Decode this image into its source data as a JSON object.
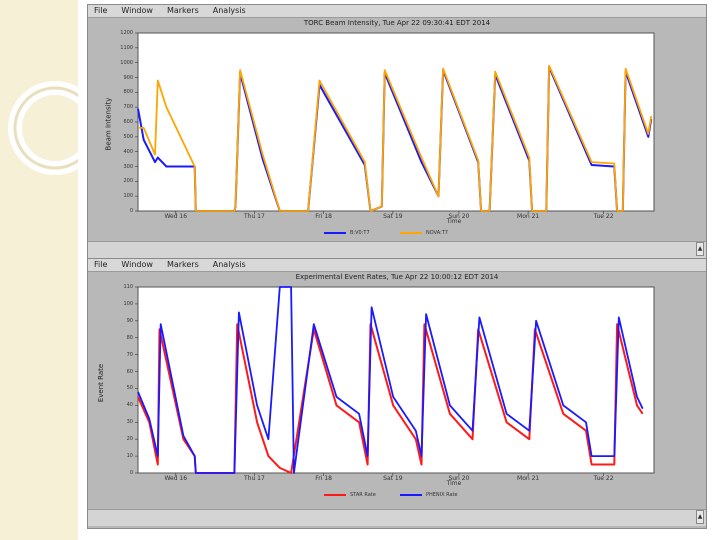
{
  "colors": {
    "blue": "#1a1aff",
    "orange": "#ffa500",
    "red": "#ff1a1a",
    "window_bg": "#b8b8b8",
    "plot_bg": "#ffffff",
    "deco": "#f5f0d6"
  },
  "window1": {
    "menu": [
      "File",
      "Window",
      "Markers",
      "Analysis"
    ],
    "title": "TORC Beam Intensity, Tue Apr 22 09:30:41 EDT 2014",
    "ylabel": "Beam Intensity",
    "xlabel": "Time",
    "legend": [
      "B:V0:T7",
      "NOVA:T7"
    ],
    "chart_data": {
      "type": "line",
      "title": "TORC Beam Intensity, Tue Apr 22 09:30:41 EDT 2014",
      "xlabel": "Time",
      "ylabel": "Beam Intensity",
      "categories": [
        "Wed 16",
        "Thu 17",
        "Fri 18",
        "Sat 19",
        "Sun 20",
        "Mon 21",
        "Tue 22"
      ],
      "yticks": [
        "0",
        "100",
        "200",
        "300",
        "400",
        "500",
        "600",
        "700",
        "800",
        "900",
        "1000",
        "1100",
        "1200"
      ],
      "ylim": [
        0,
        1200
      ],
      "series": [
        {
          "name": "B:V0:T7",
          "color": "#1a1aff",
          "values": [
            [
              0.0,
              690
            ],
            [
              0.1,
              480
            ],
            [
              0.3,
              330
            ],
            [
              0.35,
              360
            ],
            [
              0.5,
              300
            ],
            [
              1.0,
              300
            ],
            [
              1.02,
              0
            ],
            [
              1.7,
              0
            ],
            [
              1.72,
              30
            ],
            [
              1.8,
              930
            ],
            [
              2.2,
              350
            ],
            [
              2.5,
              0
            ],
            [
              3.0,
              0
            ],
            [
              3.2,
              850
            ],
            [
              4.0,
              310
            ],
            [
              4.1,
              0
            ],
            [
              4.3,
              30
            ],
            [
              4.35,
              930
            ],
            [
              5.0,
              330
            ],
            [
              5.3,
              100
            ],
            [
              5.38,
              950
            ],
            [
              6.0,
              330
            ],
            [
              6.05,
              0
            ],
            [
              6.2,
              0
            ],
            [
              6.3,
              920
            ],
            [
              6.9,
              340
            ],
            [
              6.95,
              0
            ],
            [
              7.2,
              0
            ],
            [
              7.25,
              970
            ],
            [
              8.0,
              310
            ],
            [
              8.4,
              300
            ],
            [
              8.45,
              0
            ],
            [
              8.55,
              0
            ],
            [
              8.6,
              940
            ],
            [
              9.0,
              500
            ],
            [
              9.05,
              620
            ]
          ]
        },
        {
          "name": "NOVA:T7",
          "color": "#ffa500",
          "values": [
            [
              0.0,
              560
            ],
            [
              0.1,
              560
            ],
            [
              0.3,
              380
            ],
            [
              0.35,
              880
            ],
            [
              0.5,
              700
            ],
            [
              1.0,
              300
            ],
            [
              1.02,
              0
            ],
            [
              1.7,
              0
            ],
            [
              1.72,
              30
            ],
            [
              1.8,
              950
            ],
            [
              2.2,
              380
            ],
            [
              2.5,
              0
            ],
            [
              3.0,
              0
            ],
            [
              3.2,
              880
            ],
            [
              4.0,
              330
            ],
            [
              4.1,
              0
            ],
            [
              4.3,
              30
            ],
            [
              4.35,
              950
            ],
            [
              5.0,
              360
            ],
            [
              5.3,
              100
            ],
            [
              5.38,
              960
            ],
            [
              6.0,
              340
            ],
            [
              6.05,
              0
            ],
            [
              6.2,
              0
            ],
            [
              6.3,
              940
            ],
            [
              6.9,
              360
            ],
            [
              6.95,
              0
            ],
            [
              7.2,
              0
            ],
            [
              7.25,
              980
            ],
            [
              8.0,
              330
            ],
            [
              8.4,
              320
            ],
            [
              8.45,
              0
            ],
            [
              8.55,
              0
            ],
            [
              8.6,
              960
            ],
            [
              9.0,
              520
            ],
            [
              9.05,
              640
            ]
          ]
        }
      ]
    }
  },
  "window2": {
    "menu": [
      "File",
      "Window",
      "Markers",
      "Analysis"
    ],
    "title": "Experimental Event Rates, Tue Apr 22 10:00:12 EDT 2014",
    "ylabel": "Event Rate",
    "xlabel": "Time",
    "legend": [
      "STAR Rate",
      "PHENIX Rate"
    ],
    "chart_data": {
      "type": "line",
      "title": "Experimental Event Rates, Tue Apr 22 10:00:12 EDT 2014",
      "xlabel": "Time",
      "ylabel": "Event Rate",
      "categories": [
        "Wed 16",
        "Thu 17",
        "Fri 18",
        "Sat 19",
        "Sun 20",
        "Mon 21",
        "Tue 22"
      ],
      "yticks": [
        "0",
        "10",
        "20",
        "30",
        "40",
        "50",
        "60",
        "70",
        "80",
        "90",
        "100",
        "110"
      ],
      "ylim": [
        0,
        110
      ],
      "series": [
        {
          "name": "STAR Rate",
          "color": "#ff1a1a",
          "values": [
            [
              0.0,
              45
            ],
            [
              0.2,
              30
            ],
            [
              0.35,
              5
            ],
            [
              0.38,
              85
            ],
            [
              0.8,
              20
            ],
            [
              1.0,
              10
            ],
            [
              1.02,
              0
            ],
            [
              1.7,
              0
            ],
            [
              1.75,
              88
            ],
            [
              2.1,
              30
            ],
            [
              2.3,
              10
            ],
            [
              2.5,
              3
            ],
            [
              2.7,
              0
            ],
            [
              3.1,
              85
            ],
            [
              3.5,
              40
            ],
            [
              3.9,
              30
            ],
            [
              4.05,
              5
            ],
            [
              4.1,
              88
            ],
            [
              4.5,
              40
            ],
            [
              4.9,
              20
            ],
            [
              5.0,
              5
            ],
            [
              5.05,
              88
            ],
            [
              5.5,
              35
            ],
            [
              5.9,
              20
            ],
            [
              6.0,
              85
            ],
            [
              6.5,
              30
            ],
            [
              6.9,
              20
            ],
            [
              7.0,
              85
            ],
            [
              7.5,
              35
            ],
            [
              7.9,
              25
            ],
            [
              8.0,
              5
            ],
            [
              8.4,
              5
            ],
            [
              8.45,
              88
            ],
            [
              8.8,
              40
            ],
            [
              8.9,
              35
            ]
          ]
        },
        {
          "name": "PHENIX Rate",
          "color": "#1a1aff",
          "values": [
            [
              0.0,
              48
            ],
            [
              0.2,
              32
            ],
            [
              0.35,
              10
            ],
            [
              0.4,
              88
            ],
            [
              0.8,
              22
            ],
            [
              1.0,
              10
            ],
            [
              1.02,
              0
            ],
            [
              1.7,
              0
            ],
            [
              1.78,
              95
            ],
            [
              2.1,
              40
            ],
            [
              2.3,
              20
            ],
            [
              2.5,
              110
            ],
            [
              2.7,
              110
            ],
            [
              2.75,
              0
            ],
            [
              3.1,
              88
            ],
            [
              3.5,
              45
            ],
            [
              3.9,
              35
            ],
            [
              4.05,
              10
            ],
            [
              4.12,
              98
            ],
            [
              4.5,
              45
            ],
            [
              4.9,
              25
            ],
            [
              5.0,
              10
            ],
            [
              5.08,
              94
            ],
            [
              5.5,
              40
            ],
            [
              5.9,
              25
            ],
            [
              6.02,
              92
            ],
            [
              6.5,
              35
            ],
            [
              6.9,
              25
            ],
            [
              7.02,
              90
            ],
            [
              7.5,
              40
            ],
            [
              7.9,
              30
            ],
            [
              8.0,
              10
            ],
            [
              8.4,
              10
            ],
            [
              8.48,
              92
            ],
            [
              8.8,
              45
            ],
            [
              8.9,
              38
            ]
          ]
        }
      ]
    }
  }
}
